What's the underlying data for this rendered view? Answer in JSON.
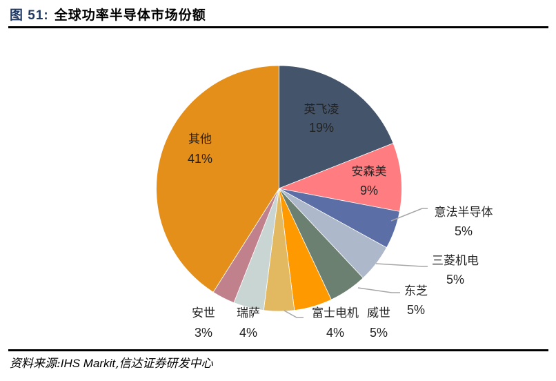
{
  "header": {
    "figure_label": "图 51:",
    "title": "全球功率半导体市场份额"
  },
  "footer": {
    "source_prefix": "资料来源:",
    "source_en": "IHS Markit",
    "source_suffix": ",信达证券研发中心"
  },
  "chart_data": {
    "type": "pie",
    "title": "全球功率半导体市场份额",
    "start_angle": "12 o'clock, clockwise",
    "categories": [
      "英飞凌",
      "安森美",
      "意法半导体",
      "三菱机电",
      "东芝",
      "威世",
      "富士电机",
      "瑞萨",
      "安世",
      "其他"
    ],
    "values": [
      19,
      9,
      5,
      5,
      5,
      5,
      4,
      4,
      3,
      41
    ],
    "unit": "%",
    "colors": [
      "#44546a",
      "#ff7c80",
      "#5b6ea6",
      "#adb9ca",
      "#6b8071",
      "#ff9900",
      "#e2b960",
      "#c9d5d2",
      "#c0808c",
      "#e58f1b"
    ],
    "labels": [
      {
        "name": "英飞凌",
        "pct": "19%"
      },
      {
        "name": "安森美",
        "pct": "9%"
      },
      {
        "name": "意法半导体",
        "pct": "5%"
      },
      {
        "name": "三菱机电",
        "pct": "5%"
      },
      {
        "name": "东芝",
        "pct": "5%"
      },
      {
        "name": "威世",
        "pct": "5%"
      },
      {
        "name": "富士电机",
        "pct": "4%"
      },
      {
        "name": "瑞萨",
        "pct": "4%"
      },
      {
        "name": "安世",
        "pct": "3%"
      },
      {
        "name": "其他",
        "pct": "41%"
      }
    ],
    "legend": "none (data labels)"
  }
}
